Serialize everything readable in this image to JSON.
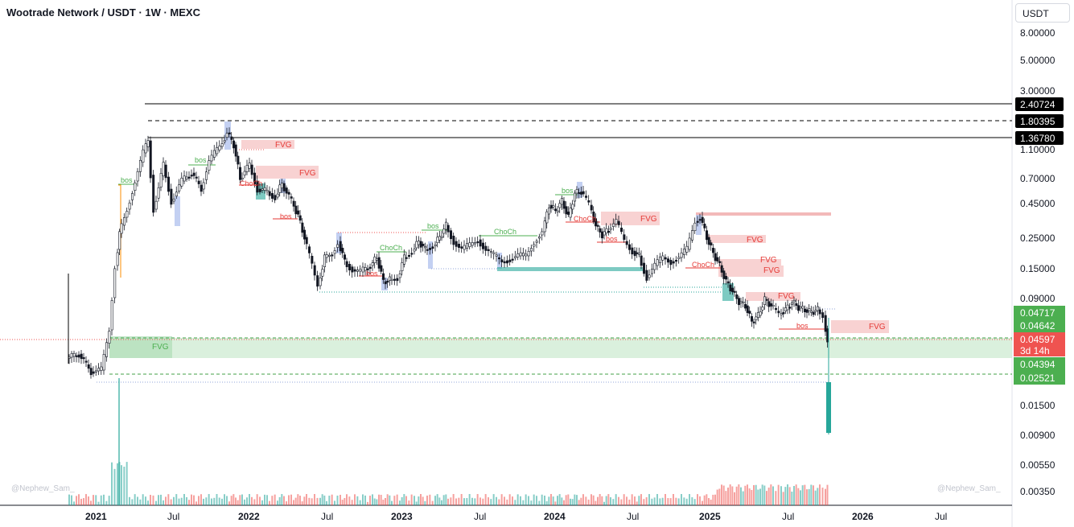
{
  "title": "Wootrade Network / USDT · 1W · MEXC",
  "currency_button": "USDT",
  "watermark": "@Nephew_Sam_",
  "colors": {
    "up": "#26a69a",
    "down": "#ef5350",
    "fvg_red": "#f8d2d2",
    "fvg_green": "#cbe9cf",
    "bos_green": "#4caf50",
    "bos_red": "#e53935"
  },
  "price_axis_ticks": [
    "8.00000",
    "5.00000",
    "3.00000",
    "1.10000",
    "0.70000",
    "0.45000",
    "0.25000",
    "0.15000",
    "0.09000",
    "0.01500",
    "0.00900",
    "0.00550",
    "0.00350"
  ],
  "price_labels": [
    {
      "value": "2.40724",
      "style": "black"
    },
    {
      "value": "1.80395",
      "style": "black"
    },
    {
      "value": "1.36780",
      "style": "black"
    },
    {
      "value": "0.04717",
      "style": "green"
    },
    {
      "value": "0.04642",
      "style": "green"
    },
    {
      "value": "0.04597",
      "countdown": "3d 14h",
      "style": "red"
    },
    {
      "value": "0.04394",
      "style": "green"
    },
    {
      "value": "0.02521",
      "style": "green"
    }
  ],
  "time_axis": [
    "2021",
    "Jul",
    "2022",
    "Jul",
    "2023",
    "Jul",
    "2024",
    "Jul",
    "2025",
    "Jul",
    "2026",
    "Jul"
  ],
  "annotations": [
    {
      "text": "FVG",
      "kind": "fvg_red"
    },
    {
      "text": "FVG",
      "kind": "fvg_red"
    },
    {
      "text": "FVG",
      "kind": "fvg_red"
    },
    {
      "text": "FVG",
      "kind": "fvg_red"
    },
    {
      "text": "FVG",
      "kind": "fvg_red"
    },
    {
      "text": "FVG",
      "kind": "fvg_red"
    },
    {
      "text": "FVG",
      "kind": "fvg_red"
    },
    {
      "text": "FVG",
      "kind": "fvg_red"
    },
    {
      "text": "FVG",
      "kind": "fvg_green"
    },
    {
      "text": "bos",
      "kind": "bull"
    },
    {
      "text": "bos",
      "kind": "bull"
    },
    {
      "text": "bos",
      "kind": "bull"
    },
    {
      "text": "bos",
      "kind": "bull"
    },
    {
      "text": "bos",
      "kind": "bear"
    },
    {
      "text": "bos",
      "kind": "bear"
    },
    {
      "text": "bos",
      "kind": "bear"
    },
    {
      "text": "bos",
      "kind": "bear"
    },
    {
      "text": "ChoCh",
      "kind": "bull"
    },
    {
      "text": "ChoCh",
      "kind": "bull"
    },
    {
      "text": "ChoCh",
      "kind": "bear"
    },
    {
      "text": "ChoCh",
      "kind": "bear"
    },
    {
      "text": "ChoCh",
      "kind": "bear"
    }
  ]
}
